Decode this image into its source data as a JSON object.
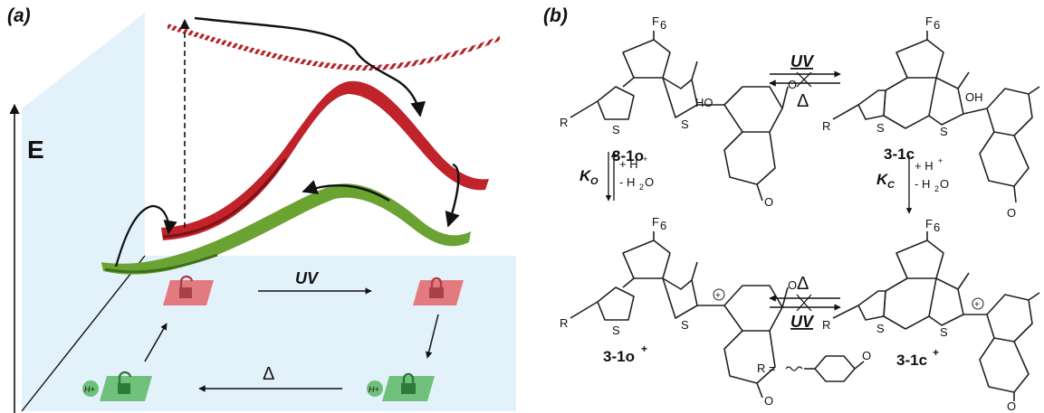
{
  "panel_a": {
    "label": "(a)",
    "axis_label": "E",
    "uv_label": "UV",
    "heat_label": "Δ",
    "proton_label": "H+",
    "colors": {
      "panel_bg": "#e3f1fb",
      "red_surface": "#c0232a",
      "red_surface_dark": "#7d1215",
      "green_surface": "#6aa332",
      "green_surface_dark": "#3f6f1a",
      "red_tile": "#e27a80",
      "green_tile": "#6fc07a"
    },
    "icons": [
      "unlocked-open-red-tile",
      "locked-closed-red-tile",
      "unlocked-protonated-green-tile",
      "locked-protonated-green-tile"
    ]
  },
  "panel_b": {
    "label": "(b)",
    "compounds": {
      "c1o": "3-1o",
      "c1c": "3-1c",
      "c1o_plus": "3-1o",
      "c1c_plus": "3-1c",
      "plus_sup": "+"
    },
    "atoms": {
      "f6": "F",
      "f6_sub": "6",
      "s": "S",
      "ho": "HO",
      "oh": "OH",
      "r": "R",
      "o": "O"
    },
    "arrows": {
      "top_forward": "UV",
      "top_back": "Δ",
      "bottom_forward": "Δ",
      "bottom_back": "UV"
    },
    "equilibria": {
      "k_open": "K",
      "k_open_sub": "O",
      "k_closed": "K",
      "k_closed_sub": "C",
      "add_proton": "+ H",
      "add_proton_sup": "+",
      "lose_water": "- H",
      "lose_water_sub": "2",
      "lose_water_tail": "O"
    },
    "r_definition": "R ="
  }
}
